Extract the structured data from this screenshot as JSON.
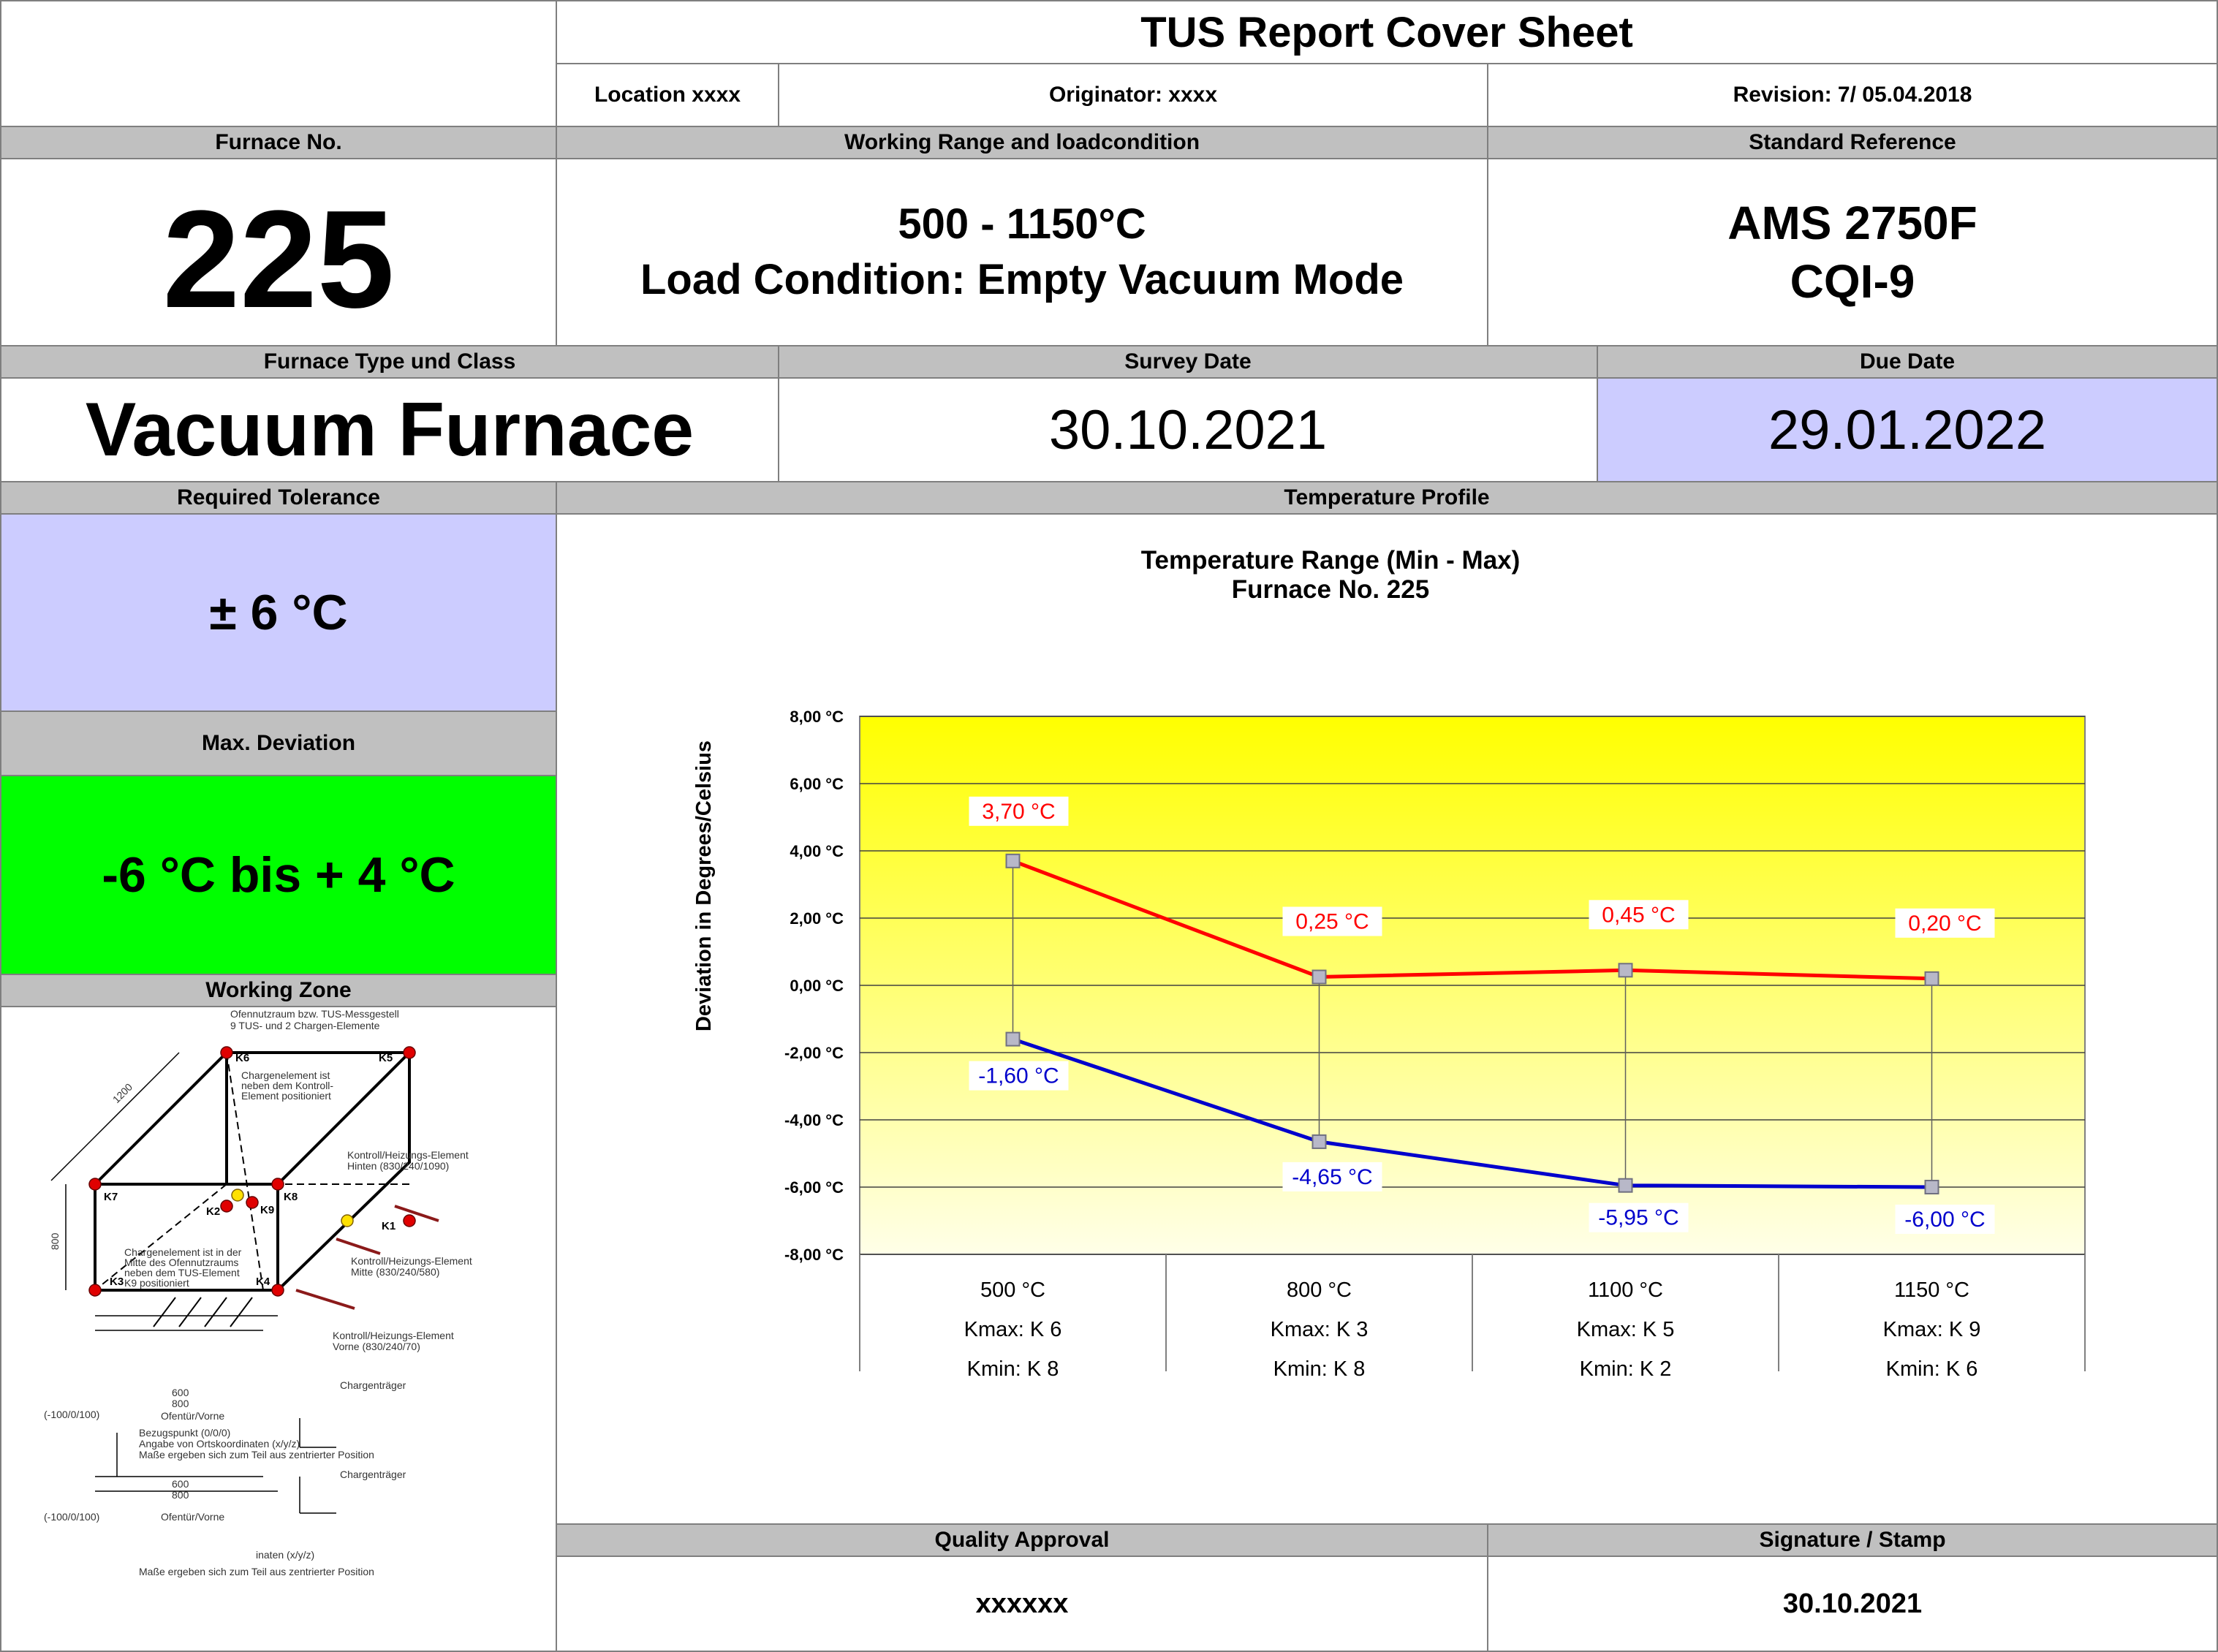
{
  "header": {
    "title": "TUS Report Cover Sheet",
    "location": "Location xxxx",
    "originator": "Originator: xxxx",
    "revision": "Revision: 7/ 05.04.2018"
  },
  "furnace_no": {
    "label": "Furnace No.",
    "value": "225"
  },
  "working_range": {
    "label": "Working Range and loadcondition",
    "line1": "500 - 1150°C",
    "line2": "Load Condition: Empty Vacuum Mode"
  },
  "standard": {
    "label": "Standard Reference",
    "line1": "AMS 2750F",
    "line2": "CQI-9"
  },
  "furnace_type": {
    "label": "Furnace Type und Class",
    "value": "Vacuum Furnace"
  },
  "survey_date": {
    "label": "Survey Date",
    "value": "30.10.2021"
  },
  "due_date": {
    "label": "Due Date",
    "value": "29.01.2022"
  },
  "tolerance": {
    "label": "Required Tolerance",
    "value": "± 6 °C"
  },
  "max_deviation": {
    "label": "Max. Deviation",
    "value": "-6 °C bis + 4 °C"
  },
  "working_zone": {
    "label": "Working Zone",
    "diagram_texts": [
      "Ofennutzraum bzw. TUS-Messgestell",
      "9 TUS- und 2 Chargen-Elemente",
      "Chargenelement ist",
      "neben dem Kontroll-",
      "Element positioniert",
      "Kontroll/Heizungs-Element",
      "Hinten (830/240/1090)",
      "Kontroll/Heizungs-Element",
      "Mitte (830/240/580)",
      "Kontroll/Heizungs-Element",
      "Vorne (830/240/70)",
      "Chargenelement ist in der",
      "Mitte des Ofennutzraums",
      "neben dem TUS-Element",
      "K9 positioniert",
      "Chargenträger",
      "Ofentür/Vorne",
      "(-100/0/100)",
      "Bezugspunkt (0/0/0)",
      "Angabe von Ortskoordinaten (x/y/z)",
      "Maße ergeben sich zum Teil aus zentrierter Position",
      "Chargenträger",
      "Ofentür/Vorne",
      "(-100/0/100)",
      "inaten (x/y/z)",
      "Maße ergeben sich zum Teil aus zentrierter Position",
      "1200",
      "800",
      "600",
      "800",
      "600",
      "800"
    ],
    "node_labels": [
      "K6",
      "K5",
      "K7",
      "K8",
      "K2",
      "K9",
      "K1",
      "K3",
      "K4"
    ]
  },
  "temperature_profile": {
    "label": "Temperature Profile"
  },
  "chart_data": {
    "type": "line",
    "title": "Temperature Range (Min - Max)",
    "subtitle": "Furnace No. 225",
    "ylabel": "Deviation in Degrees/Celsius",
    "ylim": [
      -8,
      8
    ],
    "ytick_values": [
      8,
      6,
      4,
      2,
      0,
      -2,
      -4,
      -6,
      -8
    ],
    "ytick_labels": [
      "8,00 °C",
      "6,00 °C",
      "4,00 °C",
      "2,00 °C",
      "0,00 °C",
      "-2,00 °C",
      "-4,00 °C",
      "-6,00 °C",
      "-8,00 °C"
    ],
    "categories": [
      "500 °C",
      "800 °C",
      "1100 °C",
      "1150 °C"
    ],
    "kmax": [
      "Kmax:  K 6",
      "Kmax:  K 3",
      "Kmax:  K 5",
      "Kmax:  K 9"
    ],
    "kmin": [
      "Kmin:  K 8",
      "Kmin:  K 8",
      "Kmin:  K 2",
      "Kmin:  K 6"
    ],
    "grid": true,
    "plot_background": [
      "#ffff00",
      "#ffffe8"
    ],
    "series": [
      {
        "values": [
          3.7,
          0.25,
          0.45,
          0.2
        ],
        "labels": [
          "3,70 °C",
          "0,25 °C",
          "0,45 °C",
          "0,20 °C"
        ],
        "color": "#ff0000"
      },
      {
        "values": [
          -1.6,
          -4.65,
          -5.95,
          -6.0
        ],
        "labels": [
          "-1,60 °C",
          "-4,65 °C",
          "-5,95 °C",
          "-6,00 °C"
        ],
        "color": "#0000cc"
      }
    ]
  },
  "quality": {
    "label": "Quality Approval",
    "value": "xxxxxx"
  },
  "signature": {
    "label": "Signature / Stamp",
    "value": "30.10.2021"
  },
  "colors": {
    "header_grey": "#c0c0c0",
    "lavender": "#ccccff",
    "green": "#00ff00",
    "border": "#7f7f7f"
  }
}
